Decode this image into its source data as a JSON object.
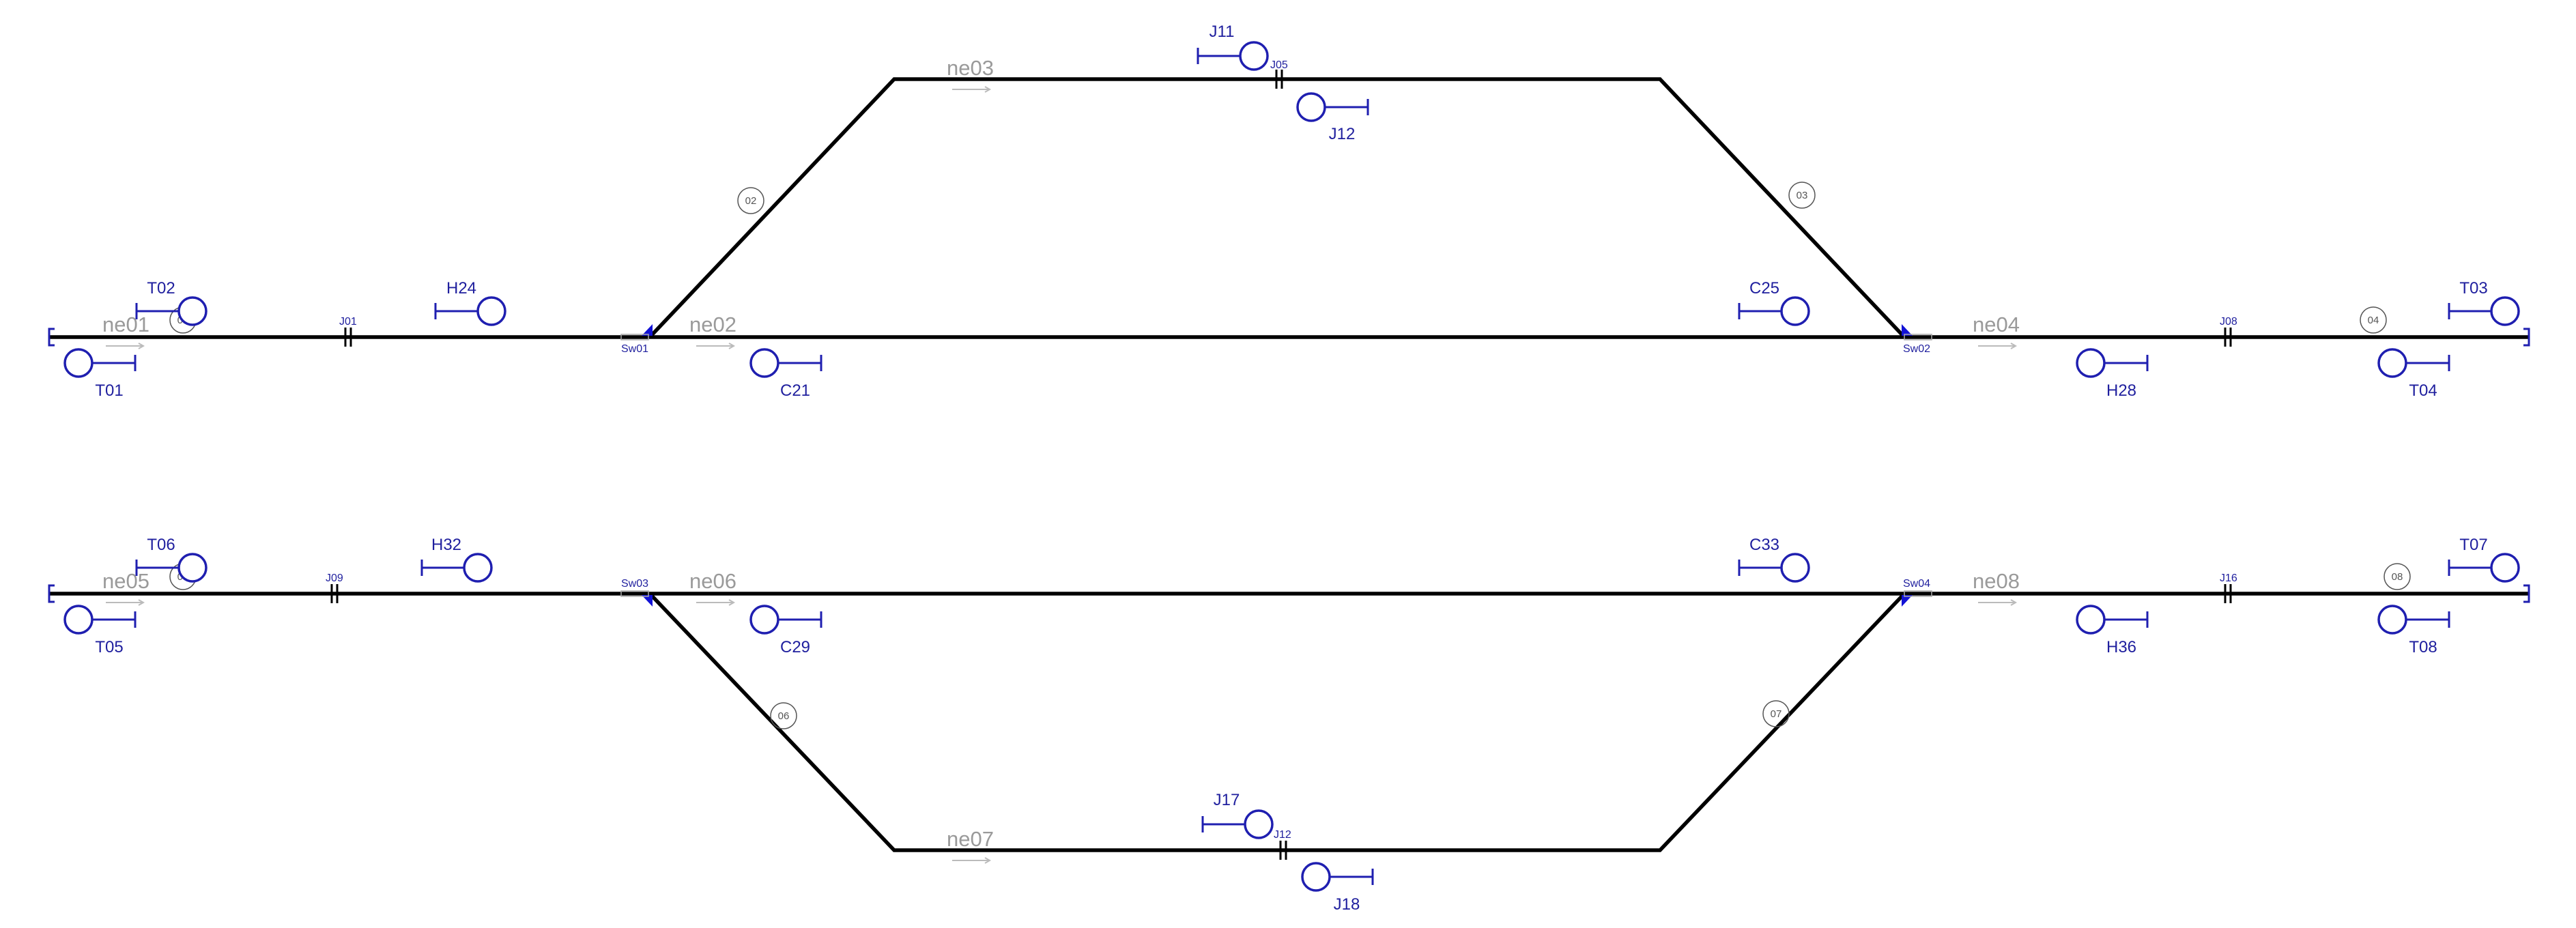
{
  "segments": {
    "ne01": "ne01",
    "ne02": "ne02",
    "ne03": "ne03",
    "ne04": "ne04",
    "ne05": "ne05",
    "ne06": "ne06",
    "ne07": "ne07",
    "ne08": "ne08"
  },
  "signals": {
    "T01": "T01",
    "T02": "T02",
    "T03": "T03",
    "T04": "T04",
    "T05": "T05",
    "T06": "T06",
    "T07": "T07",
    "T08": "T08",
    "H24": "H24",
    "H28": "H28",
    "H32": "H32",
    "H36": "H36",
    "C21": "C21",
    "C25": "C25",
    "C29": "C29",
    "C33": "C33",
    "J11": "J11",
    "J12": "J12",
    "J17": "J17",
    "J18": "J18"
  },
  "joints": {
    "J01": "J01",
    "J05": "J05",
    "J08": "J08",
    "J09": "J09",
    "J12": "J12",
    "J16": "J16"
  },
  "switches": {
    "Sw01": "Sw01",
    "Sw02": "Sw02",
    "Sw03": "Sw03",
    "Sw04": "Sw04"
  },
  "numbers": {
    "n01": "01",
    "n02": "02",
    "n03": "03",
    "n04": "04",
    "n05": "05",
    "n06": "06",
    "n07": "07",
    "n08": "08"
  },
  "colors": {
    "track": "#000000",
    "signal": "#1f1fb0",
    "segment_label": "#9a9a9a",
    "switch_marker": "#1212d6"
  }
}
